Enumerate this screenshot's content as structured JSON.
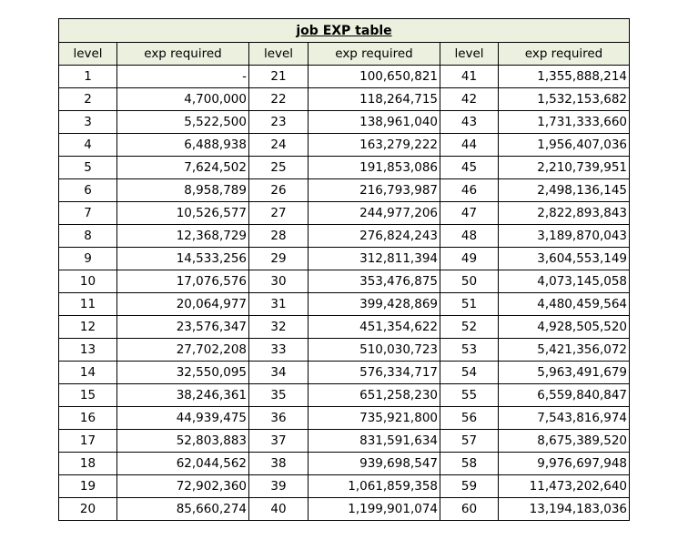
{
  "title": "job EXP table",
  "headers": [
    "level",
    "exp required",
    "level",
    "exp required",
    "level",
    "exp required"
  ],
  "rows": [
    {
      "l1": "1",
      "e1": "-",
      "l2": "21",
      "e2": "100,650,821",
      "l3": "41",
      "e3": "1,355,888,214"
    },
    {
      "l1": "2",
      "e1": "4,700,000",
      "l2": "22",
      "e2": "118,264,715",
      "l3": "42",
      "e3": "1,532,153,682"
    },
    {
      "l1": "3",
      "e1": "5,522,500",
      "l2": "23",
      "e2": "138,961,040",
      "l3": "43",
      "e3": "1,731,333,660"
    },
    {
      "l1": "4",
      "e1": "6,488,938",
      "l2": "24",
      "e2": "163,279,222",
      "l3": "44",
      "e3": "1,956,407,036"
    },
    {
      "l1": "5",
      "e1": "7,624,502",
      "l2": "25",
      "e2": "191,853,086",
      "l3": "45",
      "e3": "2,210,739,951"
    },
    {
      "l1": "6",
      "e1": "8,958,789",
      "l2": "26",
      "e2": "216,793,987",
      "l3": "46",
      "e3": "2,498,136,145"
    },
    {
      "l1": "7",
      "e1": "10,526,577",
      "l2": "27",
      "e2": "244,977,206",
      "l3": "47",
      "e3": "2,822,893,843"
    },
    {
      "l1": "8",
      "e1": "12,368,729",
      "l2": "28",
      "e2": "276,824,243",
      "l3": "48",
      "e3": "3,189,870,043"
    },
    {
      "l1": "9",
      "e1": "14,533,256",
      "l2": "29",
      "e2": "312,811,394",
      "l3": "49",
      "e3": "3,604,553,149"
    },
    {
      "l1": "10",
      "e1": "17,076,576",
      "l2": "30",
      "e2": "353,476,875",
      "l3": "50",
      "e3": "4,073,145,058"
    },
    {
      "l1": "11",
      "e1": "20,064,977",
      "l2": "31",
      "e2": "399,428,869",
      "l3": "51",
      "e3": "4,480,459,564"
    },
    {
      "l1": "12",
      "e1": "23,576,347",
      "l2": "32",
      "e2": "451,354,622",
      "l3": "52",
      "e3": "4,928,505,520"
    },
    {
      "l1": "13",
      "e1": "27,702,208",
      "l2": "33",
      "e2": "510,030,723",
      "l3": "53",
      "e3": "5,421,356,072"
    },
    {
      "l1": "14",
      "e1": "32,550,095",
      "l2": "34",
      "e2": "576,334,717",
      "l3": "54",
      "e3": "5,963,491,679"
    },
    {
      "l1": "15",
      "e1": "38,246,361",
      "l2": "35",
      "e2": "651,258,230",
      "l3": "55",
      "e3": "6,559,840,847"
    },
    {
      "l1": "16",
      "e1": "44,939,475",
      "l2": "36",
      "e2": "735,921,800",
      "l3": "56",
      "e3": "7,543,816,974"
    },
    {
      "l1": "17",
      "e1": "52,803,883",
      "l2": "37",
      "e2": "831,591,634",
      "l3": "57",
      "e3": "8,675,389,520"
    },
    {
      "l1": "18",
      "e1": "62,044,562",
      "l2": "38",
      "e2": "939,698,547",
      "l3": "58",
      "e3": "9,976,697,948"
    },
    {
      "l1": "19",
      "e1": "72,902,360",
      "l2": "39",
      "e2": "1,061,859,358",
      "l3": "59",
      "e3": "11,473,202,640"
    },
    {
      "l1": "20",
      "e1": "85,660,274",
      "l2": "40",
      "e2": "1,199,901,074",
      "l3": "60",
      "e3": "13,194,183,036"
    }
  ]
}
